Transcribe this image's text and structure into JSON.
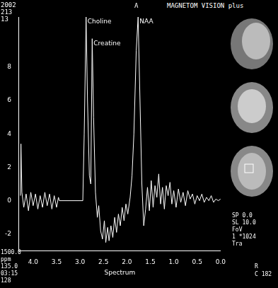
{
  "chart_data": {
    "type": "line",
    "x_label": "Spectrum",
    "x": [
      4.27,
      4.26,
      4.24,
      4.2,
      4.15,
      4.1,
      4.05,
      4.0,
      3.95,
      3.9,
      3.85,
      3.8,
      3.75,
      3.7,
      3.65,
      3.6,
      3.55,
      3.5,
      3.46,
      3.44,
      2.94,
      2.91,
      2.87,
      2.84,
      2.8,
      2.77,
      2.74,
      2.71,
      2.67,
      2.63,
      2.6,
      2.56,
      2.52,
      2.48,
      2.45,
      2.41,
      2.38,
      2.34,
      2.3,
      2.26,
      2.22,
      2.18,
      2.14,
      2.1,
      2.06,
      2.02,
      1.98,
      1.93,
      1.89,
      1.85,
      1.8,
      1.76,
      1.72,
      1.68,
      1.64,
      1.6,
      1.56,
      1.52,
      1.48,
      1.44,
      1.4,
      1.36,
      1.32,
      1.28,
      1.24,
      1.2,
      1.16,
      1.12,
      1.08,
      1.04,
      1.0,
      0.95,
      0.9,
      0.85,
      0.8,
      0.75,
      0.7,
      0.65,
      0.6,
      0.55,
      0.5,
      0.45,
      0.4,
      0.35,
      0.3,
      0.25,
      0.2,
      0.15,
      0.1,
      0.05,
      0.0
    ],
    "values": [
      0.3,
      3.4,
      0.5,
      -0.4,
      0.4,
      -0.6,
      0.5,
      -0.3,
      0.4,
      -0.5,
      0.3,
      -0.4,
      0.5,
      -0.3,
      0.4,
      -0.5,
      0.3,
      -0.4,
      0.2,
      0,
      0,
      4,
      11,
      6,
      1.5,
      1,
      9.7,
      5,
      0.5,
      -1,
      -0.3,
      -1.8,
      -2.3,
      -1.2,
      -2.5,
      -1.6,
      -2.4,
      -1.5,
      -2.2,
      -1,
      -1.9,
      -0.8,
      -1.5,
      -0.4,
      -1.2,
      -0.2,
      -0.8,
      0.2,
      1.5,
      4,
      9,
      11,
      6,
      1,
      -1.5,
      -0.5,
      0.8,
      -0.6,
      1.2,
      -0.4,
      0.9,
      0.2,
      1.6,
      -0.2,
      0.8,
      -0.5,
      0.9,
      0.3,
      1.1,
      -0.2,
      0.6,
      -0.4,
      0.7,
      -0.1,
      0.5,
      -0.3,
      0.6,
      0.1,
      0.4,
      -0.2,
      0.3,
      0,
      0.4,
      -0.1,
      0.2,
      0,
      0.3,
      -0.1,
      0.1,
      0,
      0.1
    ],
    "color": "#ffffff",
    "xlim": [
      4.3,
      0.0
    ],
    "xticks": [
      {
        "value": 4,
        "label": "4.0"
      },
      {
        "value": 3.5,
        "label": "3.5"
      },
      {
        "value": 3,
        "label": "3.0"
      },
      {
        "value": 2.5,
        "label": "2.5"
      },
      {
        "value": 2,
        "label": "2.0"
      },
      {
        "value": 1.5,
        "label": "1.5"
      },
      {
        "value": 1,
        "label": "1.0"
      },
      {
        "value": 0.5,
        "label": "0.5"
      },
      {
        "value": 0,
        "label": "0.0"
      }
    ],
    "ylim": [
      -3,
      11
    ],
    "yticks": [
      -2,
      0,
      2,
      4,
      6,
      8
    ],
    "grid": false,
    "annotations": [
      {
        "text": "Choline",
        "x": 2.87,
        "y": 11
      },
      {
        "text": "Creatine",
        "x": 2.74,
        "y": 9.7
      },
      {
        "text": "NAA",
        "x": 1.76,
        "y": 11
      }
    ]
  },
  "screen": {
    "header": "MAGNETOM VISION plus",
    "top_center": "A",
    "left_top": [
      "2002",
      "213",
      "13"
    ],
    "left_bottom": [
      "1500.0",
      "ppm",
      "135.0",
      "03:15",
      "128"
    ],
    "right_bottom": [
      "SP 0.0",
      "SL 10.0",
      "FoV",
      "1 *1024",
      "Tra"
    ],
    "corner": [
      "R",
      "C 182"
    ]
  }
}
